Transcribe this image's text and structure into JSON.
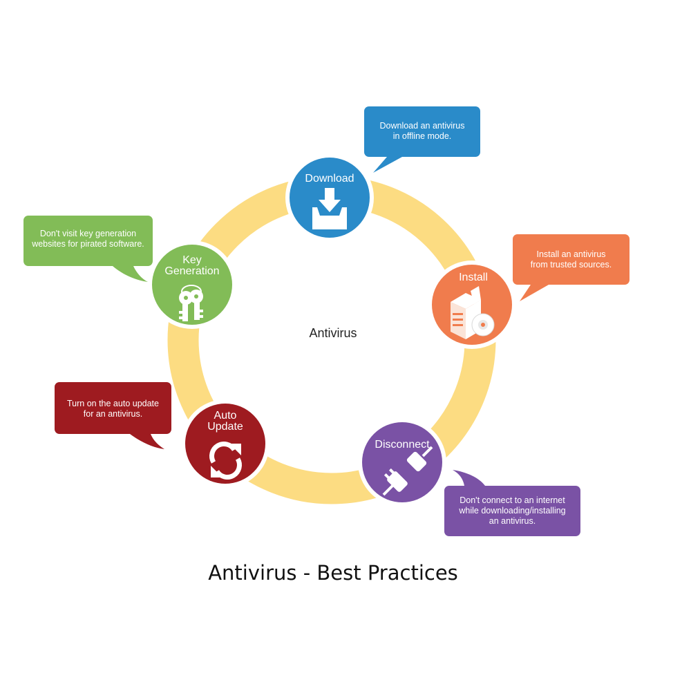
{
  "title": "Antivirus - Best Practices",
  "center": "Antivirus",
  "colors": {
    "ring": "#fcdc82",
    "download": "#2a8bc9",
    "install": "#f07c4d",
    "disconnect": "#7a52a5",
    "auto_update": "#9e1b20",
    "key_generation": "#82bc57"
  },
  "steps": [
    {
      "id": "download",
      "label": "Download",
      "icon": "download-tray-icon",
      "tip": "Download an antivirus\nin offline mode."
    },
    {
      "id": "install",
      "label": "Install",
      "icon": "software-box-disc-icon",
      "tip": "Install an antivirus\nfrom trusted sources."
    },
    {
      "id": "disconnect",
      "label": "Disconnect",
      "icon": "unplugged-cable-icon",
      "tip": "Don't connect to an internet\nwhile downloading/installing\nan antivirus."
    },
    {
      "id": "auto_update",
      "label": "Auto\nUpdate",
      "icon": "refresh-arrows-icon",
      "tip": "Turn on the auto update\nfor an antivirus."
    },
    {
      "id": "key_generation",
      "label": "Key\nGeneration",
      "icon": "keys-icon",
      "tip": "Don't visit key generation\nwebsites for pirated software."
    }
  ]
}
